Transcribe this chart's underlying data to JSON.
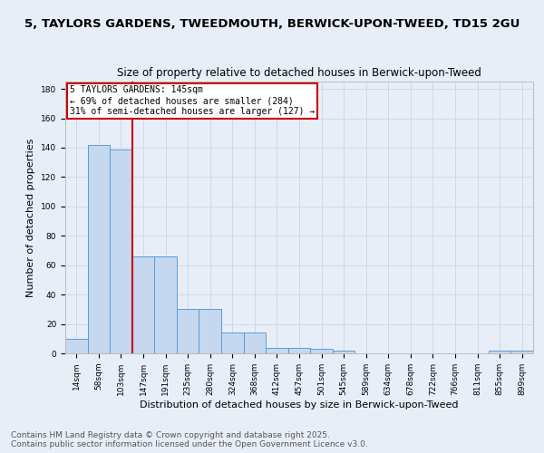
{
  "title": "5, TAYLORS GARDENS, TWEEDMOUTH, BERWICK-UPON-TWEED, TD15 2GU",
  "subtitle": "Size of property relative to detached houses in Berwick-upon-Tweed",
  "xlabel": "Distribution of detached houses by size in Berwick-upon-Tweed",
  "ylabel": "Number of detached properties",
  "categories": [
    "14sqm",
    "58sqm",
    "103sqm",
    "147sqm",
    "191sqm",
    "235sqm",
    "280sqm",
    "324sqm",
    "368sqm",
    "412sqm",
    "457sqm",
    "501sqm",
    "545sqm",
    "589sqm",
    "634sqm",
    "678sqm",
    "722sqm",
    "766sqm",
    "811sqm",
    "855sqm",
    "899sqm"
  ],
  "values": [
    10,
    142,
    139,
    66,
    66,
    30,
    30,
    14,
    14,
    4,
    4,
    3,
    2,
    0,
    0,
    0,
    0,
    0,
    0,
    2,
    2
  ],
  "bar_color": "#c5d8f0",
  "bar_edge_color": "#5b9bd5",
  "grid_color": "#d0d8e8",
  "background_color": "#e8eef8",
  "vline_x": 2.5,
  "vline_color": "#cc0000",
  "annotation_title": "5 TAYLORS GARDENS: 145sqm",
  "annotation_line1": "← 69% of detached houses are smaller (284)",
  "annotation_line2": "31% of semi-detached houses are larger (127) →",
  "annotation_box_color": "#cc0000",
  "ylim": [
    0,
    185
  ],
  "yticks": [
    0,
    20,
    40,
    60,
    80,
    100,
    120,
    140,
    160,
    180
  ],
  "footer_line1": "Contains HM Land Registry data © Crown copyright and database right 2025.",
  "footer_line2": "Contains public sector information licensed under the Open Government Licence v3.0.",
  "title_fontsize": 9.5,
  "subtitle_fontsize": 8.5,
  "xlabel_fontsize": 8,
  "ylabel_fontsize": 8,
  "tick_fontsize": 6.5,
  "footer_fontsize": 6.5,
  "ann_fontsize": 7
}
